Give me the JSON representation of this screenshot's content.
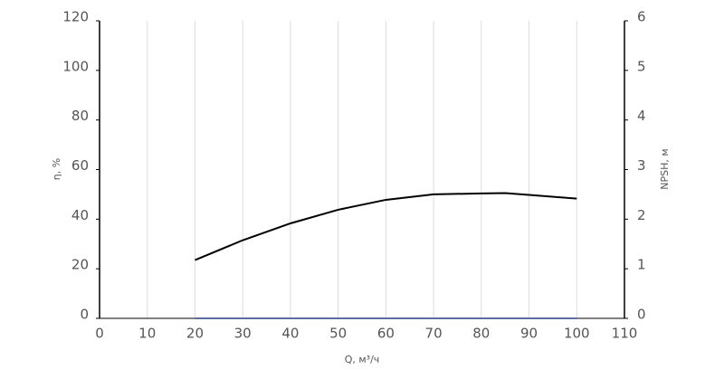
{
  "chart_data": {
    "type": "line",
    "x_label": "Q, м³/ч",
    "y_label": "η, %",
    "y2_label": "NPSH, м",
    "x": [
      20,
      30,
      40,
      50,
      60,
      70,
      80,
      85,
      90,
      100
    ],
    "series": [
      {
        "name": "η",
        "color": "#000000",
        "values": [
          23.5,
          31.5,
          38.3,
          43.8,
          47.8,
          50,
          50.4,
          50.5,
          49.8,
          48.3
        ]
      },
      {
        "name": "NPSH",
        "color": "#5a6fa8",
        "axis": "y2",
        "values": [
          0,
          0,
          0,
          0,
          0,
          0,
          0,
          0,
          0,
          0
        ]
      }
    ],
    "xlim": [
      0,
      110
    ],
    "xticks": [
      0,
      10,
      20,
      30,
      40,
      50,
      60,
      70,
      80,
      90,
      100,
      110
    ],
    "ylim": [
      0,
      120
    ],
    "yticks": [
      0,
      20,
      40,
      60,
      80,
      100,
      120
    ],
    "y2lim": [
      0,
      6
    ],
    "y2ticks": [
      0,
      1,
      2,
      3,
      4,
      5,
      6
    ],
    "grid": true
  }
}
